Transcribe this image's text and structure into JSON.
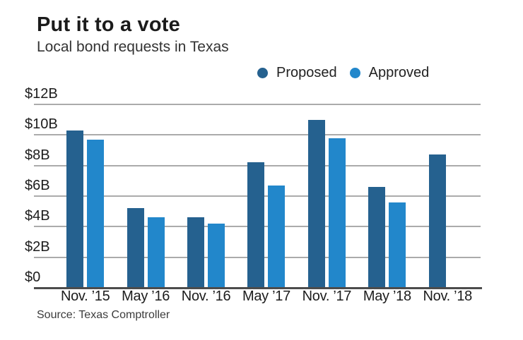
{
  "header": {
    "title": "Put it to a vote",
    "subtitle": "Local bond requests in Texas"
  },
  "footer": {
    "source": "Source: Texas Comptroller"
  },
  "colors": {
    "proposed": "#25618f",
    "approved": "#2287cb",
    "gridline": "#ababab",
    "axis_line": "#4c4c4c",
    "text": "#1c1c1c"
  },
  "chart_data": {
    "type": "bar",
    "title": "Put it to a vote",
    "subtitle": "Local bond requests in Texas",
    "unit": "billions of dollars",
    "categories": [
      "Nov. ’15",
      "May ’16",
      "Nov. ’16",
      "May ’17",
      "Nov. ’17",
      "May ’18",
      "Nov. ’18"
    ],
    "series": [
      {
        "name": "Proposed",
        "color": "#25618f",
        "values": [
          10.3,
          5.2,
          4.6,
          8.2,
          11.0,
          6.6,
          8.7
        ]
      },
      {
        "name": "Approved",
        "color": "#2287cb",
        "values": [
          9.7,
          4.6,
          4.2,
          6.7,
          9.8,
          5.6,
          null
        ]
      }
    ],
    "xlabel": "",
    "ylabel": "",
    "ylim": [
      0,
      12
    ],
    "yticks": [
      {
        "value": 12,
        "label": "$12B"
      },
      {
        "value": 10,
        "label": "$10B"
      },
      {
        "value": 8,
        "label": "$8B"
      },
      {
        "value": 6,
        "label": "$6B"
      },
      {
        "value": 4,
        "label": "$4B"
      },
      {
        "value": 2,
        "label": "$2B"
      },
      {
        "value": 0,
        "label": "$0"
      }
    ],
    "grid": true,
    "legend_position": "top-right",
    "source": "Source: Texas Comptroller"
  }
}
